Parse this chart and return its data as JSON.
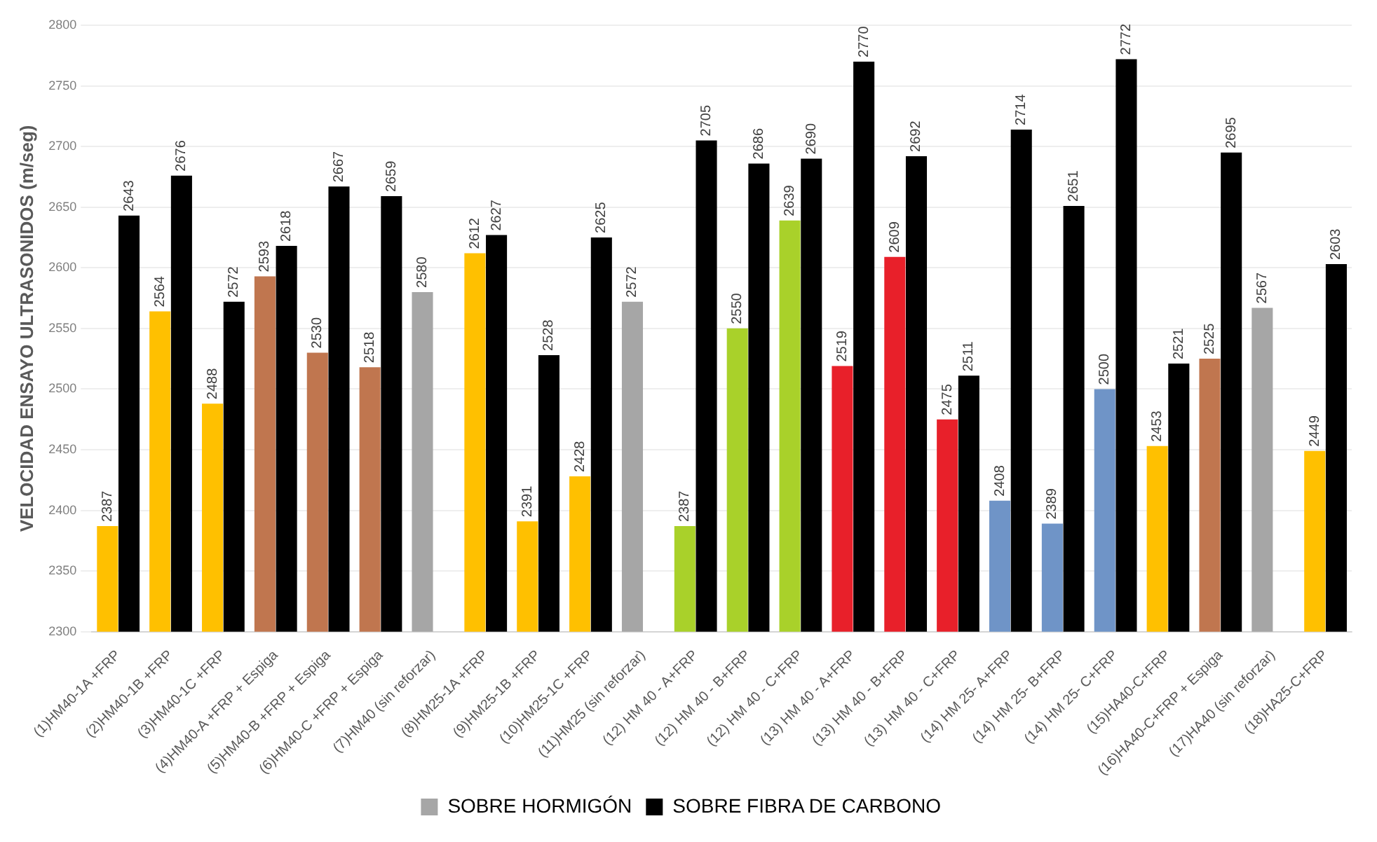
{
  "chart_data": {
    "type": "bar",
    "ylabel": "VELOCIDAD ENSAYO ULTRASONIDOS (m/seg)",
    "categories": [
      "(1)HM40-1A +FRP",
      "(2)HM40-1B +FRP",
      "(3)HM40-1C +FRP",
      "(4)HM40-A +FRP + Espiga",
      "(5)HM40-B +FRP + Espiga",
      "(6)HM40-C +FRP + Espiga",
      "(7)HM40 (sin reforzar)",
      "(8)HM25-1A +FRP",
      "(9)HM25-1B +FRP",
      "(10)HM25-1C +FRP",
      "(11)HM25 (sin reforzar)",
      "(12) HM 40 - A+FRP",
      "(12) HM 40 - B+FRP",
      "(12) HM 40 - C+FRP",
      "(13) HM 40 - A+FRP",
      "(13) HM 40 - B+FRP",
      "(13) HM 40 - C+FRP",
      "(14) HM 25- A+FRP",
      "(14) HM 25- B+FRP",
      "(14) HM 25- C+FRP",
      "(15)HA40-C+FRP",
      "(16)HA40-C+FRP + Espiga",
      "(17)HA40 (sin reforzar)",
      "(18)HA25-C+FRP"
    ],
    "series": [
      {
        "name": "SOBRE HORMIGÓN",
        "color": "#a6a6a6",
        "colors": [
          "#ffc000",
          "#ffc000",
          "#ffc000",
          "#c0764f",
          "#c0764f",
          "#c0764f",
          "#a6a6a6",
          "#ffc000",
          "#ffc000",
          "#ffc000",
          "#a6a6a6",
          "#a9d12a",
          "#a9d12a",
          "#a9d12a",
          "#e8202a",
          "#e8202a",
          "#e8202a",
          "#6f94c7",
          "#6f94c7",
          "#6f94c7",
          "#ffc000",
          "#c0764f",
          "#a6a6a6",
          "#ffc000"
        ],
        "values": [
          2387,
          2564,
          2488,
          2593,
          2530,
          2518,
          2580,
          2612,
          2391,
          2428,
          2572,
          2387,
          2550,
          2639,
          2519,
          2609,
          2475,
          2408,
          2389,
          2500,
          2453,
          2525,
          2567,
          2449
        ]
      },
      {
        "name": "SOBRE FIBRA DE CARBONO",
        "color": "#000000",
        "values": [
          2643,
          2676,
          2572,
          2618,
          2667,
          2659,
          null,
          2627,
          2528,
          2625,
          null,
          2705,
          2686,
          2690,
          2770,
          2692,
          2511,
          2714,
          2651,
          2772,
          2521,
          2695,
          null,
          2603
        ]
      }
    ],
    "ylim": [
      2300,
      2800
    ],
    "yticks": [
      2300,
      2350,
      2400,
      2450,
      2500,
      2550,
      2600,
      2650,
      2700,
      2750,
      2800
    ],
    "grid": "y",
    "legend": "bottom",
    "data_labels": true
  }
}
